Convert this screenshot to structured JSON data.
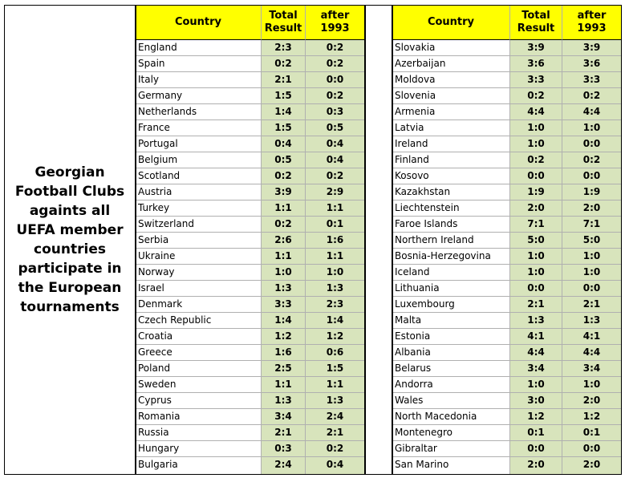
{
  "title": "Georgian Football Clubs againts all UEFA member countries participate in the European tournaments",
  "tables": [
    {
      "headers": [
        "Country",
        "Total Result",
        "after 1993"
      ],
      "rows": [
        [
          "England",
          "2:3",
          "0:2"
        ],
        [
          "Spain",
          "0:2",
          "0:2"
        ],
        [
          "Italy",
          "2:1",
          "0:0"
        ],
        [
          "Germany",
          "1:5",
          "0:2"
        ],
        [
          "Netherlands",
          "1:4",
          "0:3"
        ],
        [
          "France",
          "1:5",
          "0:5"
        ],
        [
          "Portugal",
          "0:4",
          "0:4"
        ],
        [
          "Belgium",
          "0:5",
          "0:4"
        ],
        [
          "Scotland",
          "0:2",
          "0:2"
        ],
        [
          "Austria",
          "3:9",
          "2:9"
        ],
        [
          "Turkey",
          "1:1",
          "1:1"
        ],
        [
          "Switzerland",
          "0:2",
          "0:1"
        ],
        [
          "Serbia",
          "2:6",
          "1:6"
        ],
        [
          "Ukraine",
          "1:1",
          "1:1"
        ],
        [
          "Norway",
          "1:0",
          "1:0"
        ],
        [
          "Israel",
          "1:3",
          "1:3"
        ],
        [
          "Denmark",
          "3:3",
          "2:3"
        ],
        [
          "Czech Republic",
          "1:4",
          "1:4"
        ],
        [
          "Croatia",
          "1:2",
          "1:2"
        ],
        [
          "Greece",
          "1:6",
          "0:6"
        ],
        [
          "Poland",
          "2:5",
          "1:5"
        ],
        [
          "Sweden",
          "1:1",
          "1:1"
        ],
        [
          "Cyprus",
          "1:3",
          "1:3"
        ],
        [
          "Romania",
          "3:4",
          "2:4"
        ],
        [
          "Russia",
          "2:1",
          "2:1"
        ],
        [
          "Hungary",
          "0:3",
          "0:2"
        ],
        [
          "Bulgaria",
          "2:4",
          "0:4"
        ]
      ]
    },
    {
      "headers": [
        "Country",
        "Total Result",
        "after 1993"
      ],
      "rows": [
        [
          "Slovakia",
          "3:9",
          "3:9"
        ],
        [
          "Azerbaijan",
          "3:6",
          "3:6"
        ],
        [
          "Moldova",
          "3:3",
          "3:3"
        ],
        [
          "Slovenia",
          "0:2",
          "0:2"
        ],
        [
          "Armenia",
          "4:4",
          "4:4"
        ],
        [
          "Latvia",
          "1:0",
          "1:0"
        ],
        [
          "Ireland",
          "1:0",
          "0:0"
        ],
        [
          "Finland",
          "0:2",
          "0:2"
        ],
        [
          "Kosovo",
          "0:0",
          "0:0"
        ],
        [
          "Kazakhstan",
          "1:9",
          "1:9"
        ],
        [
          "Liechtenstein",
          "2:0",
          "2:0"
        ],
        [
          "Faroe Islands",
          "7:1",
          "7:1"
        ],
        [
          "Northern Ireland",
          "5:0",
          "5:0"
        ],
        [
          "Bosnia-Herzegovina",
          "1:0",
          "1:0"
        ],
        [
          "Iceland",
          "1:0",
          "1:0"
        ],
        [
          "Lithuania",
          "0:0",
          "0:0"
        ],
        [
          "Luxembourg",
          "2:1",
          "2:1"
        ],
        [
          "Malta",
          "1:3",
          "1:3"
        ],
        [
          "Estonia",
          "4:1",
          "4:1"
        ],
        [
          "Albania",
          "4:4",
          "4:4"
        ],
        [
          "Belarus",
          "3:4",
          "3:4"
        ],
        [
          "Andorra",
          "1:0",
          "1:0"
        ],
        [
          "Wales",
          "3:0",
          "2:0"
        ],
        [
          "North Macedonia",
          "1:2",
          "1:2"
        ],
        [
          "Montenegro",
          "0:1",
          "0:1"
        ],
        [
          "Gibraltar",
          "0:0",
          "0:0"
        ],
        [
          "San Marino",
          "2:0",
          "2:0"
        ]
      ]
    }
  ]
}
